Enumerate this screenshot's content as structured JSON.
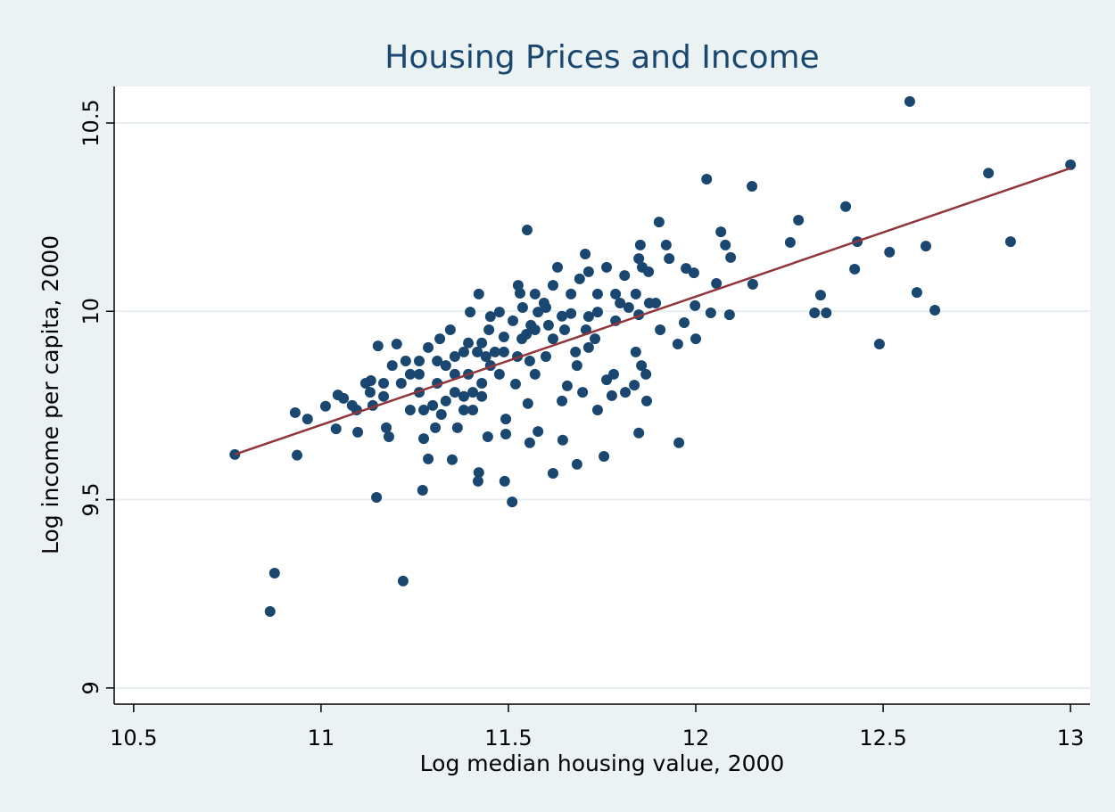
{
  "chart_data": {
    "type": "scatter",
    "title": "Housing Prices and Income",
    "x_label": "Log median housing value, 2000",
    "y_label": "Log income per capita, 2000",
    "xlim": [
      10.448,
      13.052
    ],
    "ylim": [
      8.957,
      10.597
    ],
    "xticks": [
      10.5,
      11,
      11.5,
      12,
      12.5,
      13
    ],
    "yticks": [
      9,
      9.5,
      10,
      10.5
    ],
    "grid": true,
    "series": [
      {
        "type": "scatter",
        "color": "#1a476f",
        "x": [
          10.77,
          10.864,
          10.876,
          11.219,
          11.148,
          11.271,
          11.51,
          12.571,
          13.0,
          12.781,
          12.84,
          12.029,
          12.15,
          11.55,
          12.4,
          12.274,
          12.252,
          12.431,
          12.614,
          12.517,
          12.424,
          12.59,
          12.638,
          12.333,
          12.317,
          12.348,
          12.49,
          12.067,
          12.079,
          12.093,
          12.152,
          12.09,
          12.04,
          12.055,
          11.902,
          11.921,
          11.929,
          11.974,
          11.995,
          11.998,
          12.0,
          11.969,
          11.952,
          11.955,
          11.905,
          11.852,
          11.848,
          11.81,
          11.84,
          11.848,
          11.84,
          11.855,
          11.867,
          11.869,
          11.836,
          11.848,
          11.812,
          11.755,
          11.738,
          11.781,
          11.762,
          11.714,
          11.705,
          11.69,
          11.667,
          11.631,
          11.619,
          11.6,
          11.579,
          11.56,
          11.536,
          11.526,
          11.531,
          11.476,
          11.448,
          11.429,
          11.398,
          11.421,
          11.381,
          11.345,
          11.317,
          11.286,
          11.262,
          11.238,
          11.214,
          11.19,
          11.167,
          11.138,
          11.119,
          11.095,
          11.06,
          11.045,
          11.012,
          10.964,
          10.931,
          10.936,
          11.04,
          11.098,
          11.202,
          11.152,
          11.174,
          11.181,
          11.274,
          11.305,
          11.364,
          11.286,
          11.35,
          11.421,
          11.419,
          11.49,
          11.445,
          11.493,
          11.557,
          11.579,
          11.552,
          11.493,
          11.519,
          11.619,
          11.645,
          11.643,
          11.657,
          11.683,
          11.698,
          11.762,
          11.776,
          11.731,
          11.786,
          11.798,
          11.6,
          11.571,
          11.476,
          11.405,
          11.357,
          11.333,
          11.31,
          11.262,
          11.238,
          11.381,
          11.429,
          11.452,
          11.524,
          11.557,
          11.619,
          11.679,
          11.707,
          11.571,
          11.595,
          11.643,
          11.65,
          11.857,
          11.874,
          11.876,
          11.893,
          11.786,
          11.738,
          11.738,
          11.683,
          11.714,
          11.333,
          11.357,
          11.31,
          11.393,
          11.44,
          11.464,
          11.488,
          11.512,
          11.548,
          11.607,
          11.667,
          11.714,
          11.821,
          11.262,
          11.226,
          11.167,
          11.133,
          11.131,
          11.083,
          11.274,
          11.298,
          11.321,
          11.405,
          11.381,
          11.429,
          11.357,
          11.393,
          11.417,
          11.488,
          11.452,
          11.571,
          11.538
        ],
        "values": [
          9.62,
          9.203,
          9.305,
          9.284,
          9.506,
          9.525,
          9.494,
          10.557,
          10.389,
          10.367,
          10.185,
          10.351,
          10.332,
          10.216,
          10.278,
          10.242,
          10.183,
          10.185,
          10.173,
          10.157,
          10.112,
          10.05,
          10.003,
          10.043,
          9.996,
          9.996,
          9.913,
          10.211,
          10.176,
          10.143,
          10.072,
          9.991,
          9.996,
          10.074,
          10.237,
          10.176,
          10.14,
          10.114,
          10.102,
          10.015,
          9.927,
          9.97,
          9.913,
          9.651,
          9.951,
          10.176,
          10.14,
          10.095,
          10.046,
          9.991,
          9.892,
          9.856,
          9.833,
          9.762,
          9.804,
          9.677,
          9.785,
          9.615,
          9.738,
          9.833,
          10.117,
          10.105,
          10.152,
          10.086,
          10.046,
          10.117,
          10.069,
          10.01,
          9.998,
          9.963,
          9.927,
          10.069,
          10.048,
          9.998,
          9.951,
          9.916,
          9.998,
          10.046,
          9.892,
          9.951,
          9.927,
          9.904,
          9.868,
          9.833,
          9.809,
          9.856,
          9.774,
          9.75,
          9.809,
          9.738,
          9.769,
          9.778,
          9.748,
          9.714,
          9.731,
          9.618,
          9.688,
          9.679,
          9.913,
          9.908,
          9.691,
          9.667,
          9.662,
          9.691,
          9.691,
          9.608,
          9.606,
          9.572,
          9.549,
          9.549,
          9.667,
          9.674,
          9.651,
          9.681,
          9.755,
          9.714,
          9.807,
          9.57,
          9.658,
          9.762,
          9.802,
          9.594,
          9.785,
          9.818,
          9.776,
          9.927,
          9.975,
          10.022,
          9.88,
          9.833,
          9.833,
          9.785,
          9.785,
          9.762,
          9.809,
          9.785,
          9.738,
          9.738,
          9.809,
          9.856,
          9.88,
          9.868,
          9.927,
          9.892,
          9.951,
          10.046,
          10.022,
          9.987,
          9.951,
          10.117,
          10.105,
          10.022,
          10.022,
          10.046,
          10.046,
          9.998,
          9.856,
          9.904,
          9.856,
          9.833,
          9.868,
          9.833,
          9.88,
          9.892,
          9.932,
          9.975,
          9.939,
          9.963,
          9.994,
          9.986,
          10.01,
          9.833,
          9.868,
          9.809,
          9.816,
          9.785,
          9.75,
          9.738,
          9.75,
          9.726,
          9.738,
          9.774,
          9.774,
          9.88,
          9.916,
          9.892,
          9.892,
          9.986,
          9.951,
          10.01
        ]
      },
      {
        "type": "line",
        "color": "#90353b",
        "x": [
          10.77,
          13.0
        ],
        "values": [
          9.62,
          10.38
        ]
      }
    ]
  }
}
